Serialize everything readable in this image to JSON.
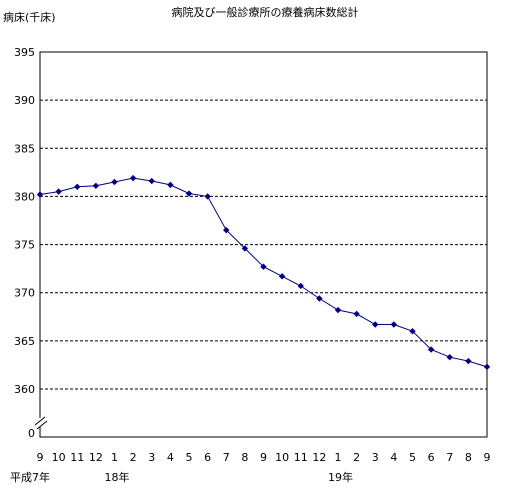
{
  "chart_data": {
    "type": "line",
    "title": "病院及び一般診療所の療養病床数総計",
    "ylabel": "病床(千床)",
    "xlabel": "",
    "y_ticks": [
      "395",
      "390",
      "385",
      "380",
      "375",
      "370",
      "365",
      "360",
      "0"
    ],
    "ylim": [
      360,
      395
    ],
    "axis_break": true,
    "grid": "horizontal dashed",
    "legend": "none",
    "categories": [
      "9",
      "10",
      "11",
      "12",
      "1",
      "2",
      "3",
      "4",
      "5",
      "6",
      "7",
      "8",
      "9",
      "10",
      "11",
      "12",
      "1",
      "2",
      "3",
      "4",
      "5",
      "6",
      "7",
      "8",
      "9"
    ],
    "year_labels": [
      {
        "text": "平成7年",
        "at_index": 0
      },
      {
        "text": "18年",
        "at_index": 4
      },
      {
        "text": "19年",
        "at_index": 16
      }
    ],
    "series": [
      {
        "values": [
          380.2,
          380.5,
          381.0,
          381.1,
          381.5,
          381.9,
          381.6,
          381.2,
          380.3,
          380.0,
          376.5,
          374.6,
          372.7,
          371.7,
          370.7,
          369.4,
          368.2,
          367.8,
          366.7,
          366.7,
          366.0,
          364.1,
          363.3,
          362.9,
          362.3
        ],
        "color": "#000080"
      }
    ]
  }
}
